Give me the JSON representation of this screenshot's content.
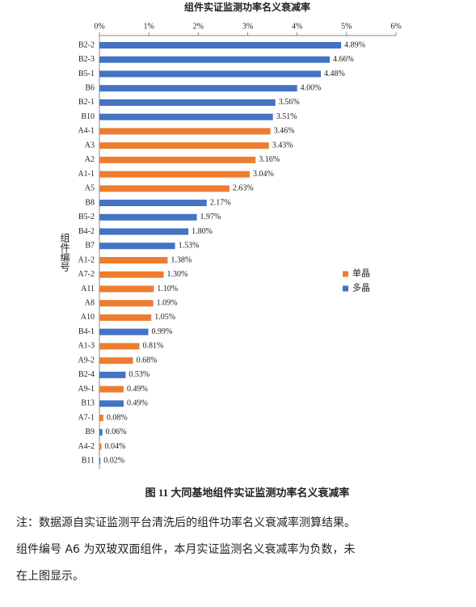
{
  "chart_data": {
    "type": "bar",
    "orientation": "horizontal",
    "title": "组件实证监测功率名义衰减率",
    "y_label": "组件编号",
    "caption": "图 11 大同基地组件实证监测功率名义衰减率",
    "categories": [
      "B2-2",
      "B2-3",
      "B5-1",
      "B6",
      "B2-1",
      "B10",
      "A4-1",
      "A3",
      "A2",
      "A1-1",
      "A5",
      "B8",
      "B5-2",
      "B4-2",
      "B7",
      "A1-2",
      "A7-2",
      "A11",
      "A8",
      "A10",
      "B4-1",
      "A1-3",
      "A9-2",
      "B2-4",
      "A9-1",
      "B13",
      "A7-1",
      "B9",
      "A4-2",
      "B11"
    ],
    "series": [
      {
        "name": "单晶",
        "color": "#ed7d31",
        "values": [
          null,
          null,
          null,
          null,
          null,
          null,
          3.46,
          3.43,
          3.16,
          3.04,
          2.63,
          null,
          null,
          null,
          null,
          1.38,
          1.3,
          1.1,
          1.09,
          1.05,
          null,
          0.81,
          0.68,
          null,
          0.49,
          null,
          0.08,
          null,
          0.04,
          null
        ],
        "value_labels": [
          null,
          null,
          null,
          null,
          null,
          null,
          "3.46%",
          "3.43%",
          "3.16%",
          "3.04%",
          "2.63%",
          null,
          null,
          null,
          null,
          "1.38%",
          "1.30%",
          "1.10%",
          "1.09%",
          "1.05%",
          null,
          "0.81%",
          "0.68%",
          null,
          "0.49%",
          null,
          "0.08%",
          null,
          "0.04%",
          null
        ]
      },
      {
        "name": "多晶",
        "color": "#4472c4",
        "values": [
          4.89,
          4.66,
          4.48,
          4.0,
          3.56,
          3.51,
          null,
          null,
          null,
          null,
          null,
          2.17,
          1.97,
          1.8,
          1.53,
          null,
          null,
          null,
          null,
          null,
          0.99,
          null,
          null,
          0.53,
          null,
          0.49,
          null,
          0.06,
          null,
          0.02
        ],
        "value_labels": [
          "4.89%",
          "4.66%",
          "4.48%",
          "4.00%",
          "3.56%",
          "3.51%",
          null,
          null,
          null,
          null,
          null,
          "2.17%",
          "1.97%",
          "1.80%",
          "1.53%",
          null,
          null,
          null,
          null,
          null,
          "0.99%",
          null,
          null,
          "0.53%",
          null,
          "0.49%",
          null,
          "0.06%",
          null,
          "0.02%"
        ]
      }
    ],
    "xlim": [
      0,
      6
    ],
    "xticks": [
      {
        "value": 0,
        "label": "0%"
      },
      {
        "value": 1,
        "label": "1%"
      },
      {
        "value": 2,
        "label": "2%"
      },
      {
        "value": 3,
        "label": "3%"
      },
      {
        "value": 4,
        "label": "4%"
      },
      {
        "value": 5,
        "label": "5%"
      },
      {
        "value": 6,
        "label": "6%"
      }
    ],
    "legend": "right"
  },
  "notes": [
    "注：数据源自实证监测平台清洗后的组件功率名义衰减率测算结果。",
    "组件编号 A6 为双玻双面组件，本月实证监测名义衰减率为负数，未",
    "在上图显示。"
  ]
}
